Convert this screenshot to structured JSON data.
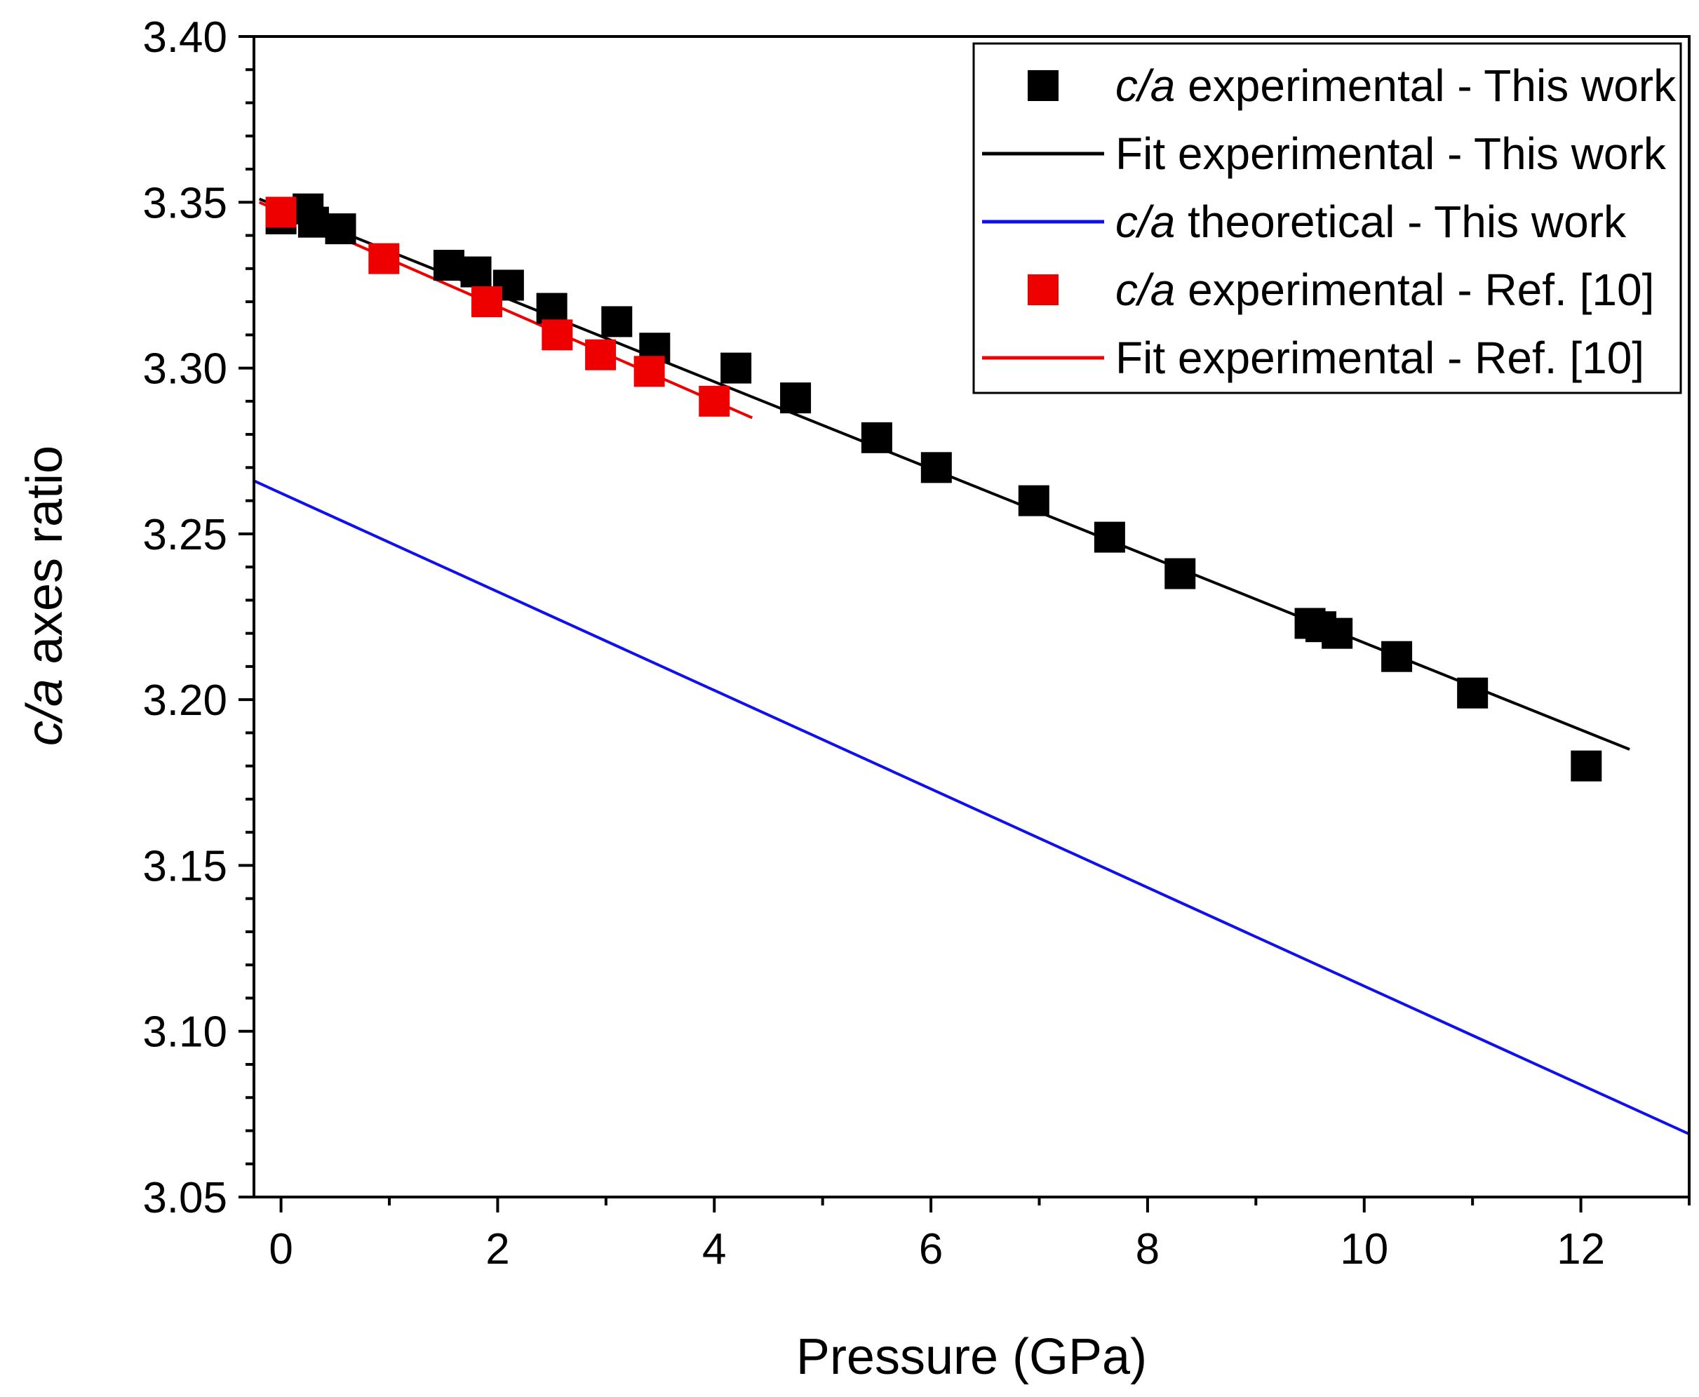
{
  "chart_data": {
    "type": "scatter",
    "xlabel": "Pressure (GPa)",
    "ylabel_italic": "c/a",
    "ylabel_rest": " axes ratio",
    "xlim": [
      -0.25,
      13.0
    ],
    "ylim": [
      3.05,
      3.4
    ],
    "xticks": [
      0,
      2,
      4,
      6,
      8,
      10,
      12
    ],
    "xtick_labels": [
      "0",
      "2",
      "4",
      "6",
      "8",
      "10",
      "12"
    ],
    "yticks": [
      3.05,
      3.1,
      3.15,
      3.2,
      3.25,
      3.3,
      3.35,
      3.4
    ],
    "ytick_labels": [
      "3.05",
      "3.10",
      "3.15",
      "3.20",
      "3.25",
      "3.30",
      "3.35",
      "3.40"
    ],
    "grid": false,
    "legend_position": "top-right",
    "series": [
      {
        "name": "c/a experimental - This work",
        "kind": "scatter",
        "marker": "square",
        "color": "#000000",
        "x": [
          0.0,
          0.25,
          0.3,
          0.55,
          1.55,
          1.8,
          2.1,
          2.5,
          3.1,
          3.45,
          4.2,
          4.75,
          5.5,
          6.05,
          6.95,
          7.65,
          8.3,
          9.5,
          9.6,
          9.75,
          10.3,
          11.0,
          12.05
        ],
        "y": [
          3.345,
          3.348,
          3.344,
          3.342,
          3.331,
          3.329,
          3.325,
          3.318,
          3.314,
          3.306,
          3.3,
          3.291,
          3.279,
          3.27,
          3.26,
          3.249,
          3.238,
          3.223,
          3.222,
          3.22,
          3.213,
          3.202,
          3.18
        ]
      },
      {
        "name": "Fit experimental - This work",
        "kind": "line",
        "color": "#000000",
        "x": [
          -0.2,
          12.45
        ],
        "y": [
          3.351,
          3.185
        ]
      },
      {
        "name": "c/a theoretical - This work",
        "kind": "line",
        "color": "#1010ee",
        "x": [
          -0.25,
          13.0
        ],
        "y": [
          3.266,
          3.069
        ]
      },
      {
        "name": "c/a experimental - Ref. [10]",
        "kind": "scatter",
        "marker": "square",
        "color": "#ee0000",
        "x": [
          0.0,
          0.95,
          1.9,
          2.55,
          2.95,
          3.4,
          4.0
        ],
        "y": [
          3.347,
          3.333,
          3.32,
          3.31,
          3.304,
          3.299,
          3.29
        ]
      },
      {
        "name": "Fit experimental - Ref. [10]",
        "kind": "line",
        "color": "#ee0000",
        "x": [
          -0.2,
          4.35
        ],
        "y": [
          3.35,
          3.285
        ]
      }
    ],
    "legend": [
      {
        "italic": "c/a",
        "rest": " experimental - This work"
      },
      {
        "italic": "",
        "rest": "Fit experimental - This work"
      },
      {
        "italic": "c/a",
        "rest": " theoretical - This work"
      },
      {
        "italic": "c/a",
        "rest": " experimental - Ref. [10]"
      },
      {
        "italic": "",
        "rest": "Fit experimental - Ref. [10]"
      }
    ]
  }
}
